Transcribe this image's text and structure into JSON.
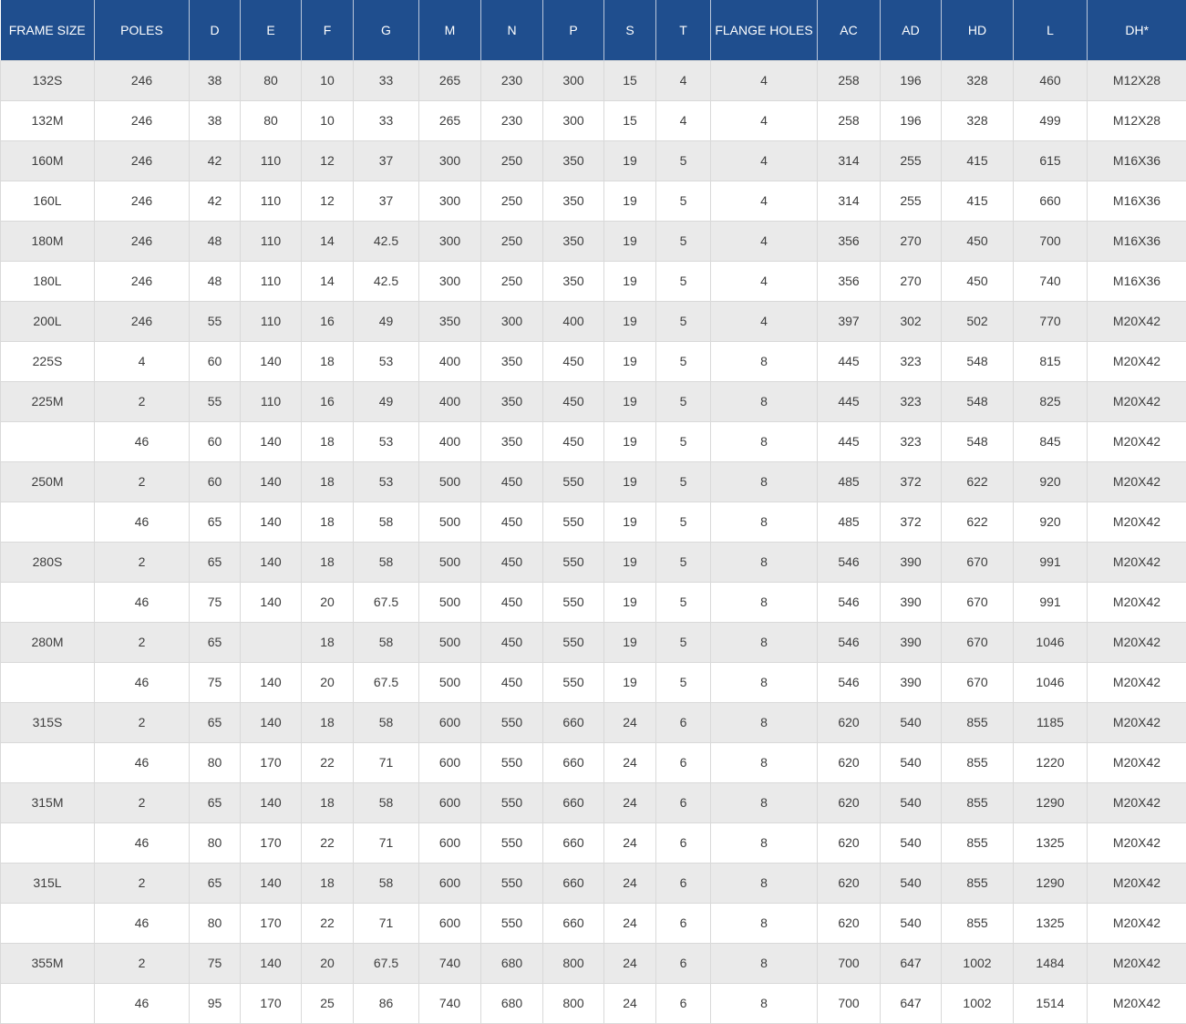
{
  "colors": {
    "header_bg": "#1f4e8e",
    "header_text": "#ffffff",
    "stripe_row_bg": "#eaeaea",
    "plain_row_bg": "#ffffff",
    "cell_border": "#d9d9d9",
    "body_text": "#3d3d3d"
  },
  "chart_data": {
    "type": "table",
    "title": "",
    "columns": [
      "FRAME SIZE",
      "POLES",
      "D",
      "E",
      "F",
      "G",
      "M",
      "N",
      "P",
      "S",
      "T",
      "FLANGE HOLES",
      "AC",
      "AD",
      "HD",
      "L",
      "DH*"
    ],
    "rows": [
      [
        "132S",
        "246",
        "38",
        "80",
        "10",
        "33",
        "265",
        "230",
        "300",
        "15",
        "4",
        "4",
        "258",
        "196",
        "328",
        "460",
        "M12X28"
      ],
      [
        "132M",
        "246",
        "38",
        "80",
        "10",
        "33",
        "265",
        "230",
        "300",
        "15",
        "4",
        "4",
        "258",
        "196",
        "328",
        "499",
        "M12X28"
      ],
      [
        "160M",
        "246",
        "42",
        "110",
        "12",
        "37",
        "300",
        "250",
        "350",
        "19",
        "5",
        "4",
        "314",
        "255",
        "415",
        "615",
        "M16X36"
      ],
      [
        "160L",
        "246",
        "42",
        "110",
        "12",
        "37",
        "300",
        "250",
        "350",
        "19",
        "5",
        "4",
        "314",
        "255",
        "415",
        "660",
        "M16X36"
      ],
      [
        "180M",
        "246",
        "48",
        "110",
        "14",
        "42.5",
        "300",
        "250",
        "350",
        "19",
        "5",
        "4",
        "356",
        "270",
        "450",
        "700",
        "M16X36"
      ],
      [
        "180L",
        "246",
        "48",
        "110",
        "14",
        "42.5",
        "300",
        "250",
        "350",
        "19",
        "5",
        "4",
        "356",
        "270",
        "450",
        "740",
        "M16X36"
      ],
      [
        "200L",
        "246",
        "55",
        "110",
        "16",
        "49",
        "350",
        "300",
        "400",
        "19",
        "5",
        "4",
        "397",
        "302",
        "502",
        "770",
        "M20X42"
      ],
      [
        "225S",
        "4",
        "60",
        "140",
        "18",
        "53",
        "400",
        "350",
        "450",
        "19",
        "5",
        "8",
        "445",
        "323",
        "548",
        "815",
        "M20X42"
      ],
      [
        "225M",
        "2",
        "55",
        "110",
        "16",
        "49",
        "400",
        "350",
        "450",
        "19",
        "5",
        "8",
        "445",
        "323",
        "548",
        "825",
        "M20X42"
      ],
      [
        "",
        "46",
        "60",
        "140",
        "18",
        "53",
        "400",
        "350",
        "450",
        "19",
        "5",
        "8",
        "445",
        "323",
        "548",
        "845",
        "M20X42"
      ],
      [
        "250M",
        "2",
        "60",
        "140",
        "18",
        "53",
        "500",
        "450",
        "550",
        "19",
        "5",
        "8",
        "485",
        "372",
        "622",
        "920",
        "M20X42"
      ],
      [
        "",
        "46",
        "65",
        "140",
        "18",
        "58",
        "500",
        "450",
        "550",
        "19",
        "5",
        "8",
        "485",
        "372",
        "622",
        "920",
        "M20X42"
      ],
      [
        "280S",
        "2",
        "65",
        "140",
        "18",
        "58",
        "500",
        "450",
        "550",
        "19",
        "5",
        "8",
        "546",
        "390",
        "670",
        "991",
        "M20X42"
      ],
      [
        "",
        "46",
        "75",
        "140",
        "20",
        "67.5",
        "500",
        "450",
        "550",
        "19",
        "5",
        "8",
        "546",
        "390",
        "670",
        "991",
        "M20X42"
      ],
      [
        "280M",
        "2",
        "65",
        "",
        "18",
        "58",
        "500",
        "450",
        "550",
        "19",
        "5",
        "8",
        "546",
        "390",
        "670",
        "1046",
        "M20X42"
      ],
      [
        "",
        "46",
        "75",
        "140",
        "20",
        "67.5",
        "500",
        "450",
        "550",
        "19",
        "5",
        "8",
        "546",
        "390",
        "670",
        "1046",
        "M20X42"
      ],
      [
        "315S",
        "2",
        "65",
        "140",
        "18",
        "58",
        "600",
        "550",
        "660",
        "24",
        "6",
        "8",
        "620",
        "540",
        "855",
        "1185",
        "M20X42"
      ],
      [
        "",
        "46",
        "80",
        "170",
        "22",
        "71",
        "600",
        "550",
        "660",
        "24",
        "6",
        "8",
        "620",
        "540",
        "855",
        "1220",
        "M20X42"
      ],
      [
        "315M",
        "2",
        "65",
        "140",
        "18",
        "58",
        "600",
        "550",
        "660",
        "24",
        "6",
        "8",
        "620",
        "540",
        "855",
        "1290",
        "M20X42"
      ],
      [
        "",
        "46",
        "80",
        "170",
        "22",
        "71",
        "600",
        "550",
        "660",
        "24",
        "6",
        "8",
        "620",
        "540",
        "855",
        "1325",
        "M20X42"
      ],
      [
        "315L",
        "2",
        "65",
        "140",
        "18",
        "58",
        "600",
        "550",
        "660",
        "24",
        "6",
        "8",
        "620",
        "540",
        "855",
        "1290",
        "M20X42"
      ],
      [
        "",
        "46",
        "80",
        "170",
        "22",
        "71",
        "600",
        "550",
        "660",
        "24",
        "6",
        "8",
        "620",
        "540",
        "855",
        "1325",
        "M20X42"
      ],
      [
        "355M",
        "2",
        "75",
        "140",
        "20",
        "67.5",
        "740",
        "680",
        "800",
        "24",
        "6",
        "8",
        "700",
        "647",
        "1002",
        "1484",
        "M20X42"
      ],
      [
        "",
        "46",
        "95",
        "170",
        "25",
        "86",
        "740",
        "680",
        "800",
        "24",
        "6",
        "8",
        "700",
        "647",
        "1002",
        "1514",
        "M20X42"
      ]
    ]
  }
}
